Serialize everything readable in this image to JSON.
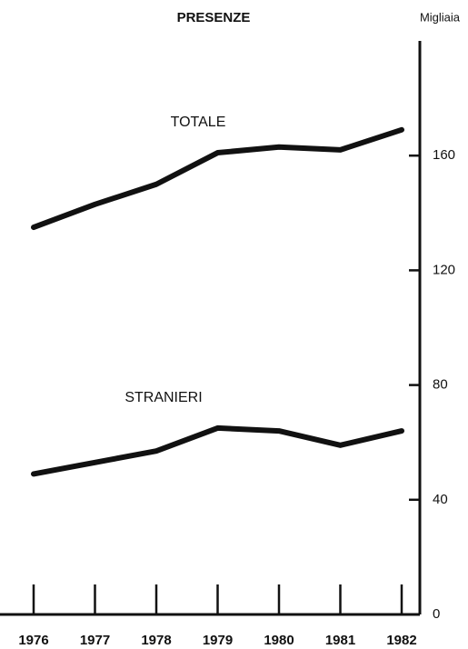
{
  "chart_data": {
    "type": "line",
    "title": "PRESENZE",
    "y_axis_label": "Migliaia",
    "categories": [
      "1976",
      "1977",
      "1978",
      "1979",
      "1980",
      "1981",
      "1982"
    ],
    "series": [
      {
        "name": "TOTALE",
        "color": "#111111",
        "values": [
          135,
          143,
          150,
          161,
          163,
          162,
          169
        ]
      },
      {
        "name": "STRANIERI",
        "color": "#111111",
        "values": [
          49,
          53,
          57,
          65,
          64,
          59,
          64
        ]
      }
    ],
    "ylim": [
      0,
      200
    ],
    "yticks": [
      0,
      40,
      80,
      120,
      160
    ],
    "y_axis_side": "right"
  }
}
